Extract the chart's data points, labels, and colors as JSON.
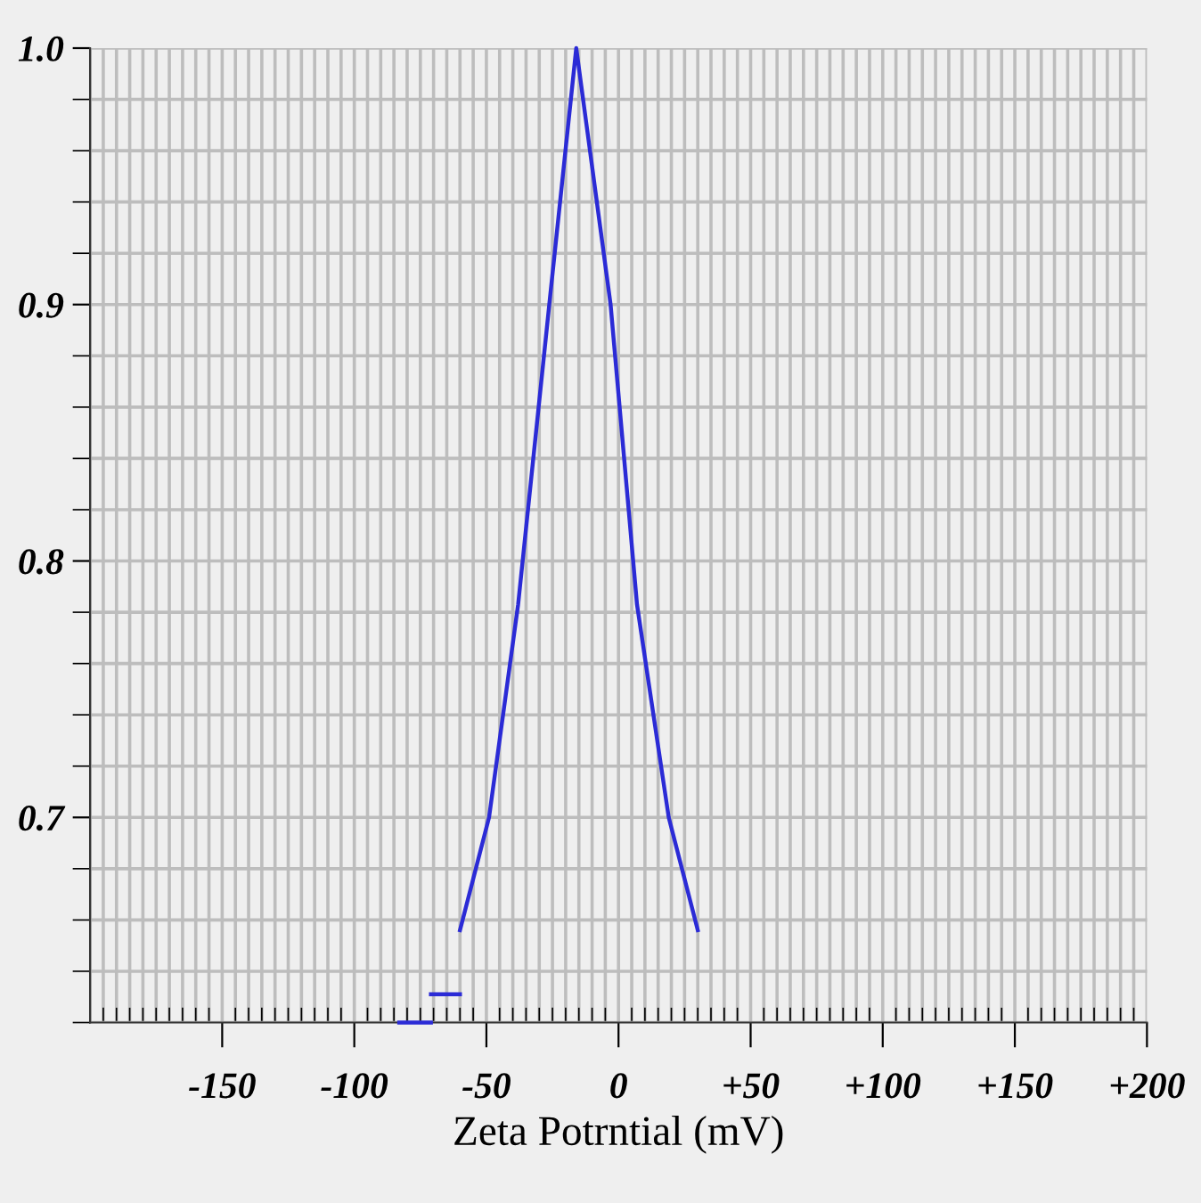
{
  "chart_data": {
    "type": "line",
    "xlabel": "Zeta Potrntial (mV)",
    "series": [
      {
        "color": "#2b2bd6",
        "x": [
          -60,
          -49,
          -38,
          -26,
          -16,
          -3,
          7,
          19,
          30
        ],
        "values": [
          0.656,
          0.7,
          0.783,
          0.902,
          1.0,
          0.9,
          0.783,
          0.7,
          0.656
        ]
      },
      {
        "color": "#2b2bd6",
        "x": [
          -83,
          -71
        ],
        "values": [
          0.62,
          0.62
        ]
      },
      {
        "color": "#2b2bd6",
        "x": [
          -71,
          -60
        ],
        "values": [
          0.631,
          0.631
        ]
      }
    ],
    "xlim": [
      -200,
      200
    ],
    "xticks": [
      {
        "value": -200,
        "label": null
      },
      {
        "value": -195,
        "label": null
      },
      {
        "value": -190,
        "label": null
      },
      {
        "value": -185,
        "label": null
      },
      {
        "value": -180,
        "label": null
      },
      {
        "value": -175,
        "label": null
      },
      {
        "value": -170,
        "label": null
      },
      {
        "value": -165,
        "label": null
      },
      {
        "value": -160,
        "label": null
      },
      {
        "value": -155,
        "label": null
      },
      -150,
      {
        "value": -145,
        "label": null
      },
      {
        "value": -140,
        "label": null
      },
      {
        "value": -135,
        "label": null
      },
      {
        "value": -130,
        "label": null
      },
      {
        "value": -125,
        "label": null
      },
      {
        "value": -120,
        "label": null
      },
      {
        "value": -115,
        "label": null
      },
      {
        "value": -110,
        "label": null
      },
      {
        "value": -105,
        "label": null
      },
      -100,
      {
        "value": -95,
        "label": null
      },
      {
        "value": -90,
        "label": null
      },
      {
        "value": -85,
        "label": null
      },
      {
        "value": -80,
        "label": null
      },
      {
        "value": -75,
        "label": null
      },
      {
        "value": -70,
        "label": null
      },
      {
        "value": -65,
        "label": null
      },
      {
        "value": -60,
        "label": null
      },
      {
        "value": -55,
        "label": null
      },
      -50,
      {
        "value": -45,
        "label": null
      },
      {
        "value": -40,
        "label": null
      },
      {
        "value": -35,
        "label": null
      },
      {
        "value": -30,
        "label": null
      },
      {
        "value": -25,
        "label": null
      },
      {
        "value": -20,
        "label": null
      },
      {
        "value": -15,
        "label": null
      },
      {
        "value": -10,
        "label": null
      },
      {
        "value": -5,
        "label": null
      },
      0,
      {
        "value": 5,
        "label": null
      },
      {
        "value": 10,
        "label": null
      },
      {
        "value": 15,
        "label": null
      },
      {
        "value": 20,
        "label": null
      },
      {
        "value": 25,
        "label": null
      },
      {
        "value": 30,
        "label": null
      },
      {
        "value": 35,
        "label": null
      },
      {
        "value": 40,
        "label": null
      },
      {
        "value": 45,
        "label": null
      },
      {
        "value": 50,
        "label": "+50"
      },
      {
        "value": 55,
        "label": null
      },
      {
        "value": 60,
        "label": null
      },
      {
        "value": 65,
        "label": null
      },
      {
        "value": 70,
        "label": null
      },
      {
        "value": 75,
        "label": null
      },
      {
        "value": 80,
        "label": null
      },
      {
        "value": 85,
        "label": null
      },
      {
        "value": 90,
        "label": null
      },
      {
        "value": 95,
        "label": null
      },
      {
        "value": 100,
        "label": "+100"
      },
      {
        "value": 105,
        "label": null
      },
      {
        "value": 110,
        "label": null
      },
      {
        "value": 115,
        "label": null
      },
      {
        "value": 120,
        "label": null
      },
      {
        "value": 125,
        "label": null
      },
      {
        "value": 130,
        "label": null
      },
      {
        "value": 135,
        "label": null
      },
      {
        "value": 140,
        "label": null
      },
      {
        "value": 145,
        "label": null
      },
      {
        "value": 150,
        "label": "+150"
      },
      {
        "value": 155,
        "label": null
      },
      {
        "value": 160,
        "label": null
      },
      {
        "value": 165,
        "label": null
      },
      {
        "value": 170,
        "label": null
      },
      {
        "value": 175,
        "label": null
      },
      {
        "value": 180,
        "label": null
      },
      {
        "value": 185,
        "label": null
      },
      {
        "value": 190,
        "label": null
      },
      {
        "value": 195,
        "label": null
      },
      {
        "value": 200,
        "label": "+200"
      }
    ],
    "ylim": [
      0.62,
      1.0
    ],
    "yticks": [
      {
        "value": 0.62,
        "label": null
      },
      {
        "value": 0.64,
        "label": null
      },
      {
        "value": 0.66,
        "label": null
      },
      {
        "value": 0.68,
        "label": null
      },
      {
        "value": 0.7,
        "label": "0.7"
      },
      {
        "value": 0.72,
        "label": null
      },
      {
        "value": 0.74,
        "label": null
      },
      {
        "value": 0.76,
        "label": null
      },
      {
        "value": 0.78,
        "label": null
      },
      {
        "value": 0.8,
        "label": "0.8"
      },
      {
        "value": 0.82,
        "label": null
      },
      {
        "value": 0.84,
        "label": null
      },
      {
        "value": 0.86,
        "label": null
      },
      {
        "value": 0.88,
        "label": null
      },
      {
        "value": 0.9,
        "label": "0.9"
      },
      {
        "value": 0.92,
        "label": null
      },
      {
        "value": 0.94,
        "label": null
      },
      {
        "value": 0.96,
        "label": null
      },
      {
        "value": 0.98,
        "label": null
      },
      {
        "value": 1.0,
        "label": "1.0"
      }
    ],
    "grid": true,
    "marker": "none",
    "line_style": "solid",
    "legend": false
  }
}
